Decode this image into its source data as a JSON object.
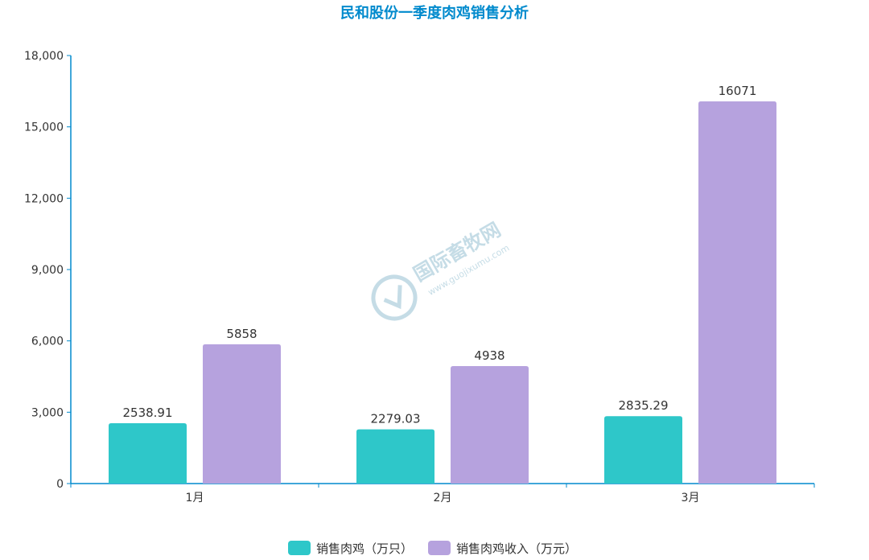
{
  "chart_data": {
    "type": "bar",
    "title": "民和股份一季度肉鸡销售分析",
    "categories": [
      "1月",
      "2月",
      "3月"
    ],
    "series": [
      {
        "name": "销售肉鸡（万只）",
        "values": [
          2538.91,
          2279.03,
          2835.29
        ],
        "color": "#2ec7c9",
        "labels": [
          "2538.91",
          "2279.03",
          "2835.29"
        ]
      },
      {
        "name": "销售肉鸡收入（万元）",
        "values": [
          5858,
          4938,
          16071
        ],
        "color": "#b6a2de",
        "labels": [
          "5858",
          "4938",
          "16071"
        ]
      }
    ],
    "ylim": [
      0,
      18000
    ],
    "yticks": [
      0,
      3000,
      6000,
      9000,
      12000,
      15000,
      18000
    ],
    "ytick_labels": [
      "0",
      "3,000",
      "6,000",
      "9,000",
      "12,000",
      "15,000",
      "18,000"
    ],
    "legend_position": "bottom-center",
    "grid": false
  },
  "colors": {
    "title": "#008acd",
    "axis": "#008acd",
    "text": "#333333"
  },
  "watermark": {
    "site_name": "国际畜牧网",
    "url": "www.guojixumu.com"
  }
}
